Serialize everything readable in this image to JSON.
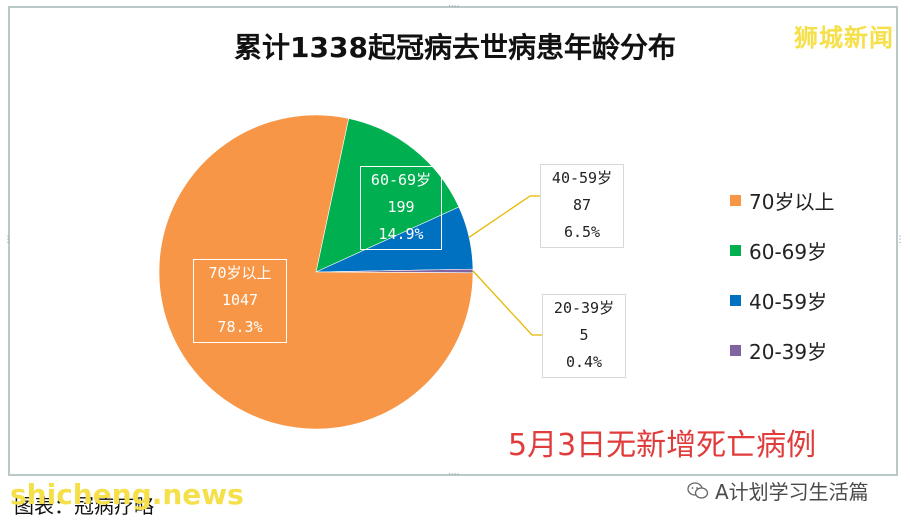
{
  "title": "累计1338起冠病去世病患年龄分布",
  "watermark": "狮城新闻",
  "note": "5月3日无新增死亡病例",
  "footer": {
    "left": "图表：冠病疗略",
    "site": "shicheng.news",
    "account": "A计划学习生活篇"
  },
  "colors": {
    "orange": "#f79646",
    "green": "#00b050",
    "blue": "#0070c0",
    "purple": "#8064a2",
    "leader": "#e5b800"
  },
  "chart_data": {
    "type": "pie",
    "title": "累计1338起冠病去世病患年龄分布",
    "legend_position": "right",
    "slices": [
      {
        "label": "70岁以上",
        "value": 1047,
        "percent": "78.3%",
        "color": "#f79646"
      },
      {
        "label": "60-69岁",
        "value": 199,
        "percent": "14.9%",
        "color": "#00b050"
      },
      {
        "label": "40-59岁",
        "value": 87,
        "percent": "6.5%",
        "color": "#0070c0"
      },
      {
        "label": "20-39岁",
        "value": 5,
        "percent": "0.4%",
        "color": "#8064a2"
      }
    ]
  }
}
